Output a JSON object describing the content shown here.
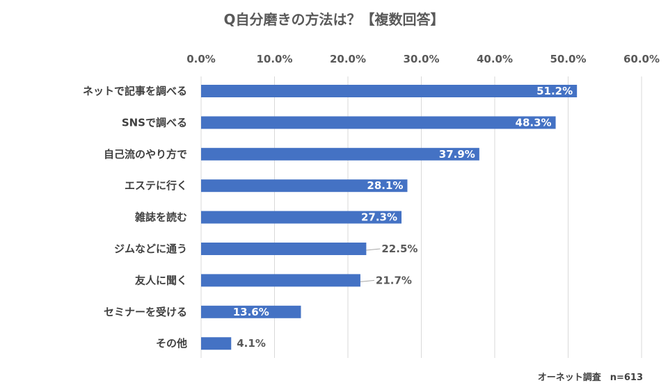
{
  "chart_data": {
    "type": "bar",
    "orientation": "horizontal",
    "title": "Q自分磨きの方法は？【複数回答】",
    "categories": [
      "ネットで記事を調べる",
      "SNSで調べる",
      "自己流のやり方で",
      "エステに行く",
      "雑誌を読む",
      "ジムなどに通う",
      "友人に聞く",
      "セミナーを受ける",
      "その他"
    ],
    "values": [
      51.2,
      48.3,
      37.9,
      28.1,
      27.3,
      22.5,
      21.7,
      13.6,
      4.1
    ],
    "value_labels": [
      "51.2%",
      "48.3%",
      "37.9%",
      "28.1%",
      "27.3%",
      "22.5%",
      "21.7%",
      "13.6%",
      "4.1%"
    ],
    "xlim": [
      0,
      60
    ],
    "xticks": [
      "0.0%",
      "10.0%",
      "20.0%",
      "30.0%",
      "40.0%",
      "50.0%",
      "60.0%"
    ],
    "x_axis_position": "top",
    "grid": true,
    "legend": false,
    "bar_color": "#4472C4",
    "grid_color": "#D9D9D9"
  },
  "footnote": "オーネット調査　n=613"
}
